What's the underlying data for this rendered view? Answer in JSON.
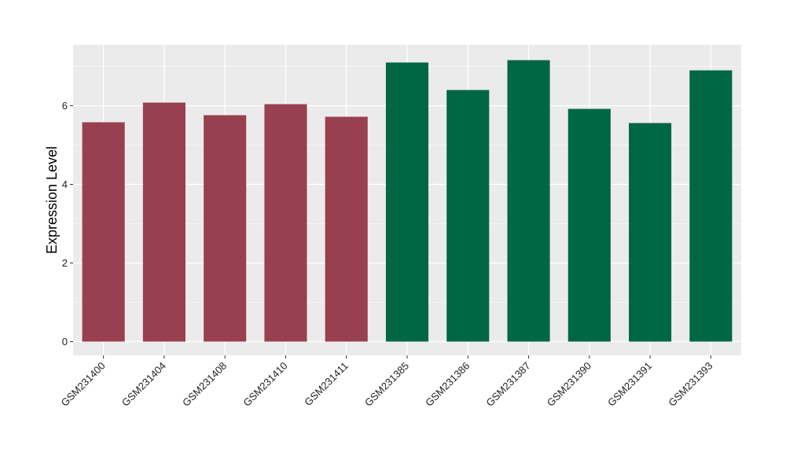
{
  "chart_data": {
    "type": "bar",
    "title": "",
    "xlabel": "",
    "ylabel": "Expression Level",
    "ylim": [
      -0.35,
      7.55
    ],
    "yticks": [
      0,
      2,
      4,
      6
    ],
    "grid": true,
    "legend": "none",
    "panel_background": "#EBEBEB",
    "grid_color": "#FFFFFF",
    "categories": [
      "GSM231400",
      "GSM231404",
      "GSM231408",
      "GSM231410",
      "GSM231411",
      "GSM231385",
      "GSM231386",
      "GSM231387",
      "GSM231390",
      "GSM231391",
      "GSM231393"
    ],
    "values": [
      5.58,
      6.08,
      5.76,
      6.04,
      5.72,
      7.1,
      6.4,
      7.16,
      5.92,
      5.56,
      6.9
    ],
    "groups": [
      1,
      1,
      1,
      1,
      1,
      2,
      2,
      2,
      2,
      2,
      2
    ],
    "group_colors": {
      "1": "#98404F",
      "2": "#006744"
    }
  }
}
